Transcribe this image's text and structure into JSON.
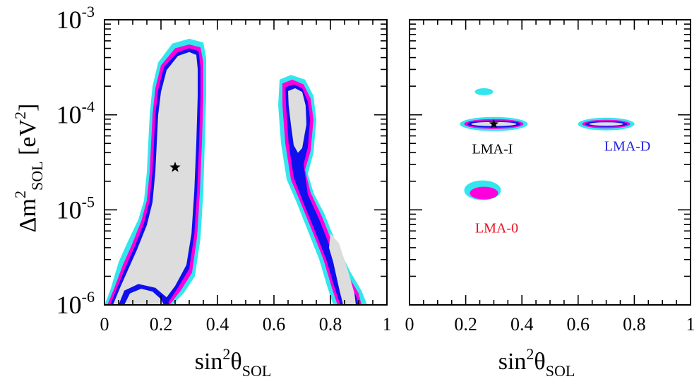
{
  "colors": {
    "outer": "#33e6ee",
    "magenta": "#ff00dd",
    "blue": "#1010ee",
    "inner": "#dddddd",
    "frame": "#000000",
    "lma0": "#ee1122",
    "lmad": "#2222dd",
    "lmai": "#000000"
  },
  "top_text_fragment": "",
  "chart_data": [
    {
      "type": "contour",
      "panel": "left",
      "xlabel": {
        "base": "sin",
        "sup": "2",
        "theta": "θ",
        "sub": "SOL"
      },
      "ylabel": {
        "delta": "Δm",
        "sup": "2",
        "sub": "SOL",
        "unit_open": "[eV",
        "unit_sup": "2",
        "unit_close": "]"
      },
      "xlim": [
        0,
        1
      ],
      "ylim_log10": [
        -6,
        -3
      ],
      "xticks": [
        "0",
        "0.2",
        "0.4",
        "0.6",
        "0.8",
        "1"
      ],
      "yticks": [
        {
          "base": "10",
          "exp": "-6",
          "log": -6
        },
        {
          "base": "10",
          "exp": "-5",
          "log": -5
        },
        {
          "base": "10",
          "exp": "-4",
          "log": -4
        },
        {
          "base": "10",
          "exp": "-3",
          "log": -3
        }
      ],
      "best_fit": {
        "x": 0.25,
        "y": 2.8e-05
      },
      "regions": [
        {
          "name": "left-island",
          "outer": [
            [
              0.0,
              -6.0
            ],
            [
              0.02,
              -5.85
            ],
            [
              0.05,
              -5.55
            ],
            [
              0.08,
              -5.35
            ],
            [
              0.12,
              -5.1
            ],
            [
              0.14,
              -4.9
            ],
            [
              0.15,
              -4.6
            ],
            [
              0.155,
              -4.3
            ],
            [
              0.16,
              -4.0
            ],
            [
              0.17,
              -3.7
            ],
            [
              0.19,
              -3.45
            ],
            [
              0.24,
              -3.25
            ],
            [
              0.3,
              -3.2
            ],
            [
              0.35,
              -3.24
            ],
            [
              0.36,
              -3.4
            ],
            [
              0.36,
              -3.8
            ],
            [
              0.355,
              -4.3
            ],
            [
              0.35,
              -4.8
            ],
            [
              0.34,
              -5.3
            ],
            [
              0.32,
              -5.7
            ],
            [
              0.28,
              -5.88
            ],
            [
              0.24,
              -6.0
            ]
          ],
          "magenta": [
            [
              0.01,
              -6.0
            ],
            [
              0.035,
              -5.82
            ],
            [
              0.065,
              -5.58
            ],
            [
              0.095,
              -5.38
            ],
            [
              0.13,
              -5.12
            ],
            [
              0.15,
              -4.9
            ],
            [
              0.16,
              -4.6
            ],
            [
              0.165,
              -4.3
            ],
            [
              0.17,
              -4.0
            ],
            [
              0.18,
              -3.72
            ],
            [
              0.2,
              -3.48
            ],
            [
              0.25,
              -3.3
            ],
            [
              0.3,
              -3.26
            ],
            [
              0.34,
              -3.29
            ],
            [
              0.35,
              -3.45
            ],
            [
              0.35,
              -3.8
            ],
            [
              0.345,
              -4.3
            ],
            [
              0.338,
              -4.8
            ],
            [
              0.328,
              -5.28
            ],
            [
              0.31,
              -5.66
            ],
            [
              0.27,
              -5.85
            ],
            [
              0.23,
              -6.0
            ]
          ],
          "blue": [
            [
              0.02,
              -6.0
            ],
            [
              0.045,
              -5.82
            ],
            [
              0.075,
              -5.6
            ],
            [
              0.105,
              -5.4
            ],
            [
              0.14,
              -5.14
            ],
            [
              0.16,
              -4.9
            ],
            [
              0.17,
              -4.6
            ],
            [
              0.175,
              -4.3
            ],
            [
              0.18,
              -4.0
            ],
            [
              0.19,
              -3.74
            ],
            [
              0.21,
              -3.5
            ],
            [
              0.26,
              -3.34
            ],
            [
              0.3,
              -3.3
            ],
            [
              0.333,
              -3.33
            ],
            [
              0.34,
              -3.5
            ],
            [
              0.34,
              -3.8
            ],
            [
              0.335,
              -4.3
            ],
            [
              0.328,
              -4.8
            ],
            [
              0.318,
              -5.26
            ],
            [
              0.3,
              -5.62
            ],
            [
              0.26,
              -5.82
            ],
            [
              0.22,
              -6.0
            ]
          ],
          "inner": [
            [
              0.03,
              -6.0
            ],
            [
              0.055,
              -5.82
            ],
            [
              0.085,
              -5.62
            ],
            [
              0.115,
              -5.42
            ],
            [
              0.15,
              -5.16
            ],
            [
              0.17,
              -4.92
            ],
            [
              0.18,
              -4.6
            ],
            [
              0.185,
              -4.3
            ],
            [
              0.19,
              -4.0
            ],
            [
              0.2,
              -3.76
            ],
            [
              0.22,
              -3.53
            ],
            [
              0.26,
              -3.38
            ],
            [
              0.3,
              -3.34
            ],
            [
              0.325,
              -3.37
            ],
            [
              0.33,
              -3.52
            ],
            [
              0.33,
              -3.8
            ],
            [
              0.325,
              -4.3
            ],
            [
              0.318,
              -4.8
            ],
            [
              0.308,
              -5.25
            ],
            [
              0.29,
              -5.58
            ],
            [
              0.25,
              -5.8
            ],
            [
              0.2,
              -6.0
            ]
          ]
        },
        {
          "name": "right-island",
          "outer": [
            [
              0.62,
              -3.63
            ],
            [
              0.66,
              -3.58
            ],
            [
              0.71,
              -3.63
            ],
            [
              0.74,
              -3.8
            ],
            [
              0.75,
              -4.05
            ],
            [
              0.74,
              -4.4
            ],
            [
              0.72,
              -4.62
            ],
            [
              0.74,
              -4.82
            ],
            [
              0.78,
              -5.05
            ],
            [
              0.82,
              -5.35
            ],
            [
              0.87,
              -5.65
            ],
            [
              0.91,
              -5.85
            ],
            [
              0.93,
              -6.0
            ],
            [
              0.81,
              -6.0
            ],
            [
              0.79,
              -5.82
            ],
            [
              0.76,
              -5.52
            ],
            [
              0.72,
              -5.22
            ],
            [
              0.68,
              -4.92
            ],
            [
              0.645,
              -4.68
            ],
            [
              0.625,
              -4.3
            ],
            [
              0.615,
              -3.9
            ]
          ],
          "magenta": [
            [
              0.63,
              -3.67
            ],
            [
              0.665,
              -3.63
            ],
            [
              0.705,
              -3.68
            ],
            [
              0.73,
              -3.83
            ],
            [
              0.74,
              -4.05
            ],
            [
              0.73,
              -4.38
            ],
            [
              0.71,
              -4.58
            ],
            [
              0.73,
              -4.82
            ],
            [
              0.77,
              -5.07
            ],
            [
              0.81,
              -5.37
            ],
            [
              0.86,
              -5.68
            ],
            [
              0.9,
              -5.88
            ],
            [
              0.91,
              -6.0
            ],
            [
              0.825,
              -6.0
            ],
            [
              0.805,
              -5.82
            ],
            [
              0.775,
              -5.52
            ],
            [
              0.735,
              -5.22
            ],
            [
              0.695,
              -4.93
            ],
            [
              0.66,
              -4.68
            ],
            [
              0.64,
              -4.3
            ],
            [
              0.63,
              -3.9
            ]
          ],
          "blue": [
            [
              0.64,
              -3.71
            ],
            [
              0.67,
              -3.68
            ],
            [
              0.7,
              -3.72
            ],
            [
              0.72,
              -3.86
            ],
            [
              0.728,
              -4.05
            ],
            [
              0.72,
              -4.34
            ],
            [
              0.705,
              -4.52
            ],
            [
              0.72,
              -4.84
            ],
            [
              0.76,
              -5.1
            ],
            [
              0.8,
              -5.4
            ],
            [
              0.85,
              -5.7
            ],
            [
              0.89,
              -5.9
            ],
            [
              0.9,
              -6.0
            ],
            [
              0.835,
              -6.0
            ],
            [
              0.815,
              -5.82
            ],
            [
              0.785,
              -5.52
            ],
            [
              0.745,
              -5.22
            ],
            [
              0.705,
              -4.93
            ],
            [
              0.67,
              -4.66
            ],
            [
              0.652,
              -4.3
            ],
            [
              0.643,
              -3.92
            ]
          ],
          "inner_parts": [
            [
              [
                0.65,
                -3.75
              ],
              [
                0.675,
                -3.72
              ],
              [
                0.7,
                -3.76
              ],
              [
                0.712,
                -3.9
              ],
              [
                0.715,
                -4.1
              ],
              [
                0.7,
                -4.35
              ],
              [
                0.685,
                -4.4
              ],
              [
                0.67,
                -4.32
              ],
              [
                0.66,
                -4.1
              ],
              [
                0.652,
                -3.9
              ]
            ],
            [
              [
                0.8,
                -5.25
              ],
              [
                0.83,
                -5.35
              ],
              [
                0.86,
                -5.62
              ],
              [
                0.885,
                -5.88
              ],
              [
                0.89,
                -6.0
              ],
              [
                0.845,
                -6.0
              ],
              [
                0.83,
                -5.82
              ],
              [
                0.81,
                -5.55
              ],
              [
                0.795,
                -5.4
              ]
            ]
          ]
        }
      ]
    },
    {
      "type": "contour",
      "panel": "right",
      "xlabel": {
        "base": "sin",
        "sup": "2",
        "theta": "θ",
        "sub": "SOL"
      },
      "xlim": [
        0,
        1
      ],
      "ylim_log10": [
        -6,
        -3
      ],
      "xticks": [
        "0",
        "0.2",
        "0.4",
        "0.6",
        "0.8",
        "1"
      ],
      "best_fit": {
        "x": 0.3,
        "y": 8e-05
      },
      "solutions": [
        {
          "label": "LMA-I",
          "x": 0.3,
          "y": 8e-05,
          "color_key": "lmai"
        },
        {
          "label": "LMA-D",
          "x": 0.7,
          "y": 8e-05,
          "color_key": "lmad"
        },
        {
          "label": "LMA-0",
          "x": 0.26,
          "y": 1.5e-05,
          "color_key": "lma0"
        }
      ]
    }
  ]
}
